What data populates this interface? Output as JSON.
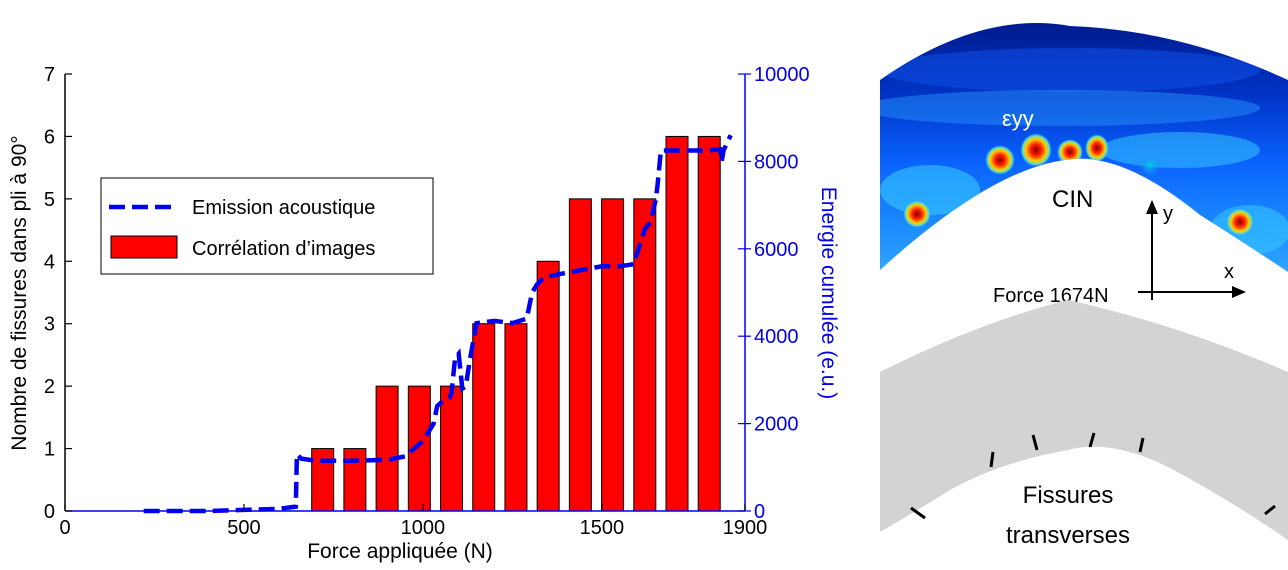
{
  "chart_data": {
    "type": "bar",
    "xlabel": "Force appliquée (N)",
    "ylabel": "Nombre de fissures dans pli à 90°",
    "ylabel_right": "Energie cumulée (e.u.)",
    "xlim": [
      0,
      1900
    ],
    "ylim": [
      0,
      7
    ],
    "ylim_right": [
      0,
      10000
    ],
    "x_ticks": [
      0,
      500,
      1000,
      1500,
      1900
    ],
    "y_ticks": [
      0,
      1,
      2,
      3,
      4,
      5,
      6,
      7
    ],
    "y_ticks_right": [
      0,
      2000,
      4000,
      6000,
      8000,
      10000
    ],
    "grid": false,
    "legend_position": "center-left",
    "colors": {
      "bars": "#ff0000",
      "line": "#0000ee",
      "right_axis": "#0000ee"
    },
    "series": [
      {
        "name": "Corrélation d’images",
        "type": "bar",
        "axis": "left",
        "x": [
          720,
          810,
          900,
          990,
          1080,
          1170,
          1260,
          1350,
          1440,
          1530,
          1620,
          1710,
          1800
        ],
        "values": [
          1,
          1,
          2,
          2,
          2,
          3,
          3,
          4,
          5,
          5,
          5,
          6,
          6
        ]
      },
      {
        "name": "Emission acoustique",
        "type": "line",
        "style": "dashed",
        "axis": "right",
        "x": [
          220,
          400,
          600,
          645,
          648,
          660,
          700,
          800,
          900,
          950,
          1000,
          1030,
          1040,
          1060,
          1075,
          1080,
          1090,
          1100,
          1110,
          1120,
          1130,
          1150,
          1200,
          1250,
          1290,
          1305,
          1320,
          1340,
          1400,
          1500,
          1550,
          1590,
          1595,
          1620,
          1635,
          1650,
          1655,
          1665,
          1700,
          1750,
          1800,
          1830,
          1835,
          1840,
          1860
        ],
        "values": [
          0,
          0,
          50,
          100,
          1300,
          1200,
          1150,
          1150,
          1170,
          1250,
          1600,
          2000,
          2400,
          2550,
          2600,
          2700,
          3500,
          3600,
          2800,
          2850,
          3400,
          4300,
          4350,
          4300,
          4400,
          5000,
          5200,
          5350,
          5450,
          5600,
          5600,
          5650,
          5800,
          6450,
          6600,
          7100,
          7400,
          8250,
          8250,
          8250,
          8250,
          8280,
          8000,
          8250,
          8600
        ]
      }
    ]
  },
  "figure": {
    "top_panel": {
      "strain_label": "εyy",
      "method_label": "CIN",
      "force_label": "Force 1674N",
      "axis_x_label": "x",
      "axis_y_label": "y"
    },
    "bottom_panel": {
      "caption_line1": "Fissures",
      "caption_line2": "transverses"
    }
  }
}
